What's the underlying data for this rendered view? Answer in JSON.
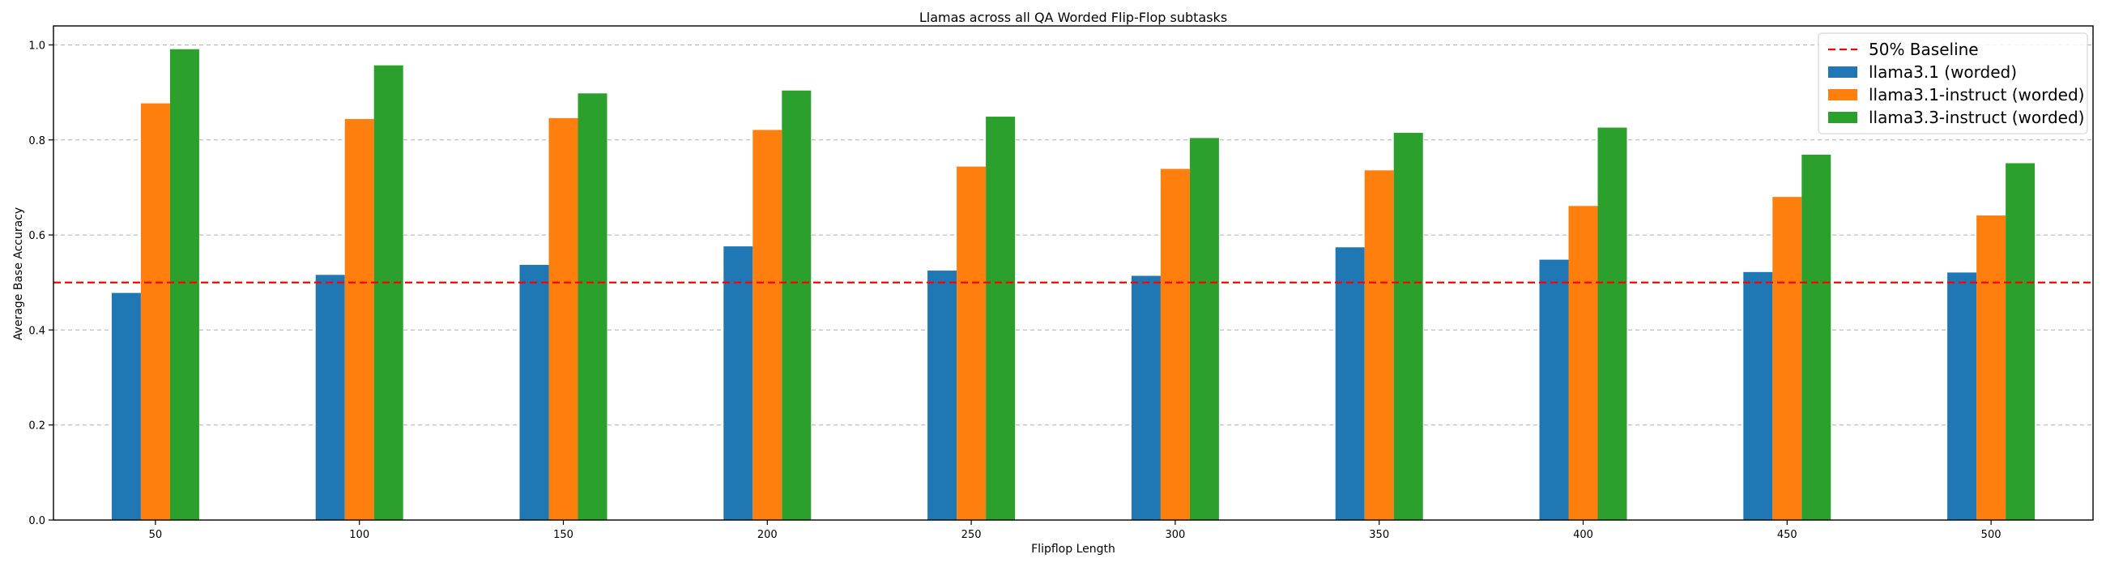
{
  "chart_data": {
    "type": "bar",
    "title": "Llamas across all QA Worded Flip-Flop subtasks",
    "xlabel": "Flipflop Length",
    "ylabel": "Average Base Accuracy",
    "categories": [
      "50",
      "100",
      "150",
      "200",
      "250",
      "300",
      "350",
      "400",
      "450",
      "500"
    ],
    "ylim": [
      0,
      1.04
    ],
    "yticks": [
      "0.0",
      "0.2",
      "0.4",
      "0.6",
      "0.8",
      "1.0"
    ],
    "grid": "y-dashed",
    "legend_position": "top-right",
    "baseline": {
      "name": "50% Baseline",
      "value": 0.5,
      "color": "#ff0000"
    },
    "series": [
      {
        "name": "llama3.1 (worded)",
        "color": "#1f77b4",
        "values": [
          0.478,
          0.516,
          0.537,
          0.576,
          0.525,
          0.514,
          0.574,
          0.548,
          0.522,
          0.521
        ]
      },
      {
        "name": "llama3.1-instruct (worded)",
        "color": "#ff7f0e",
        "values": [
          0.877,
          0.844,
          0.846,
          0.821,
          0.744,
          0.739,
          0.736,
          0.661,
          0.68,
          0.641
        ]
      },
      {
        "name": "llama3.3-instruct (worded)",
        "color": "#2ca02c",
        "values": [
          0.991,
          0.957,
          0.898,
          0.904,
          0.849,
          0.804,
          0.815,
          0.826,
          0.769,
          0.751
        ]
      }
    ]
  }
}
